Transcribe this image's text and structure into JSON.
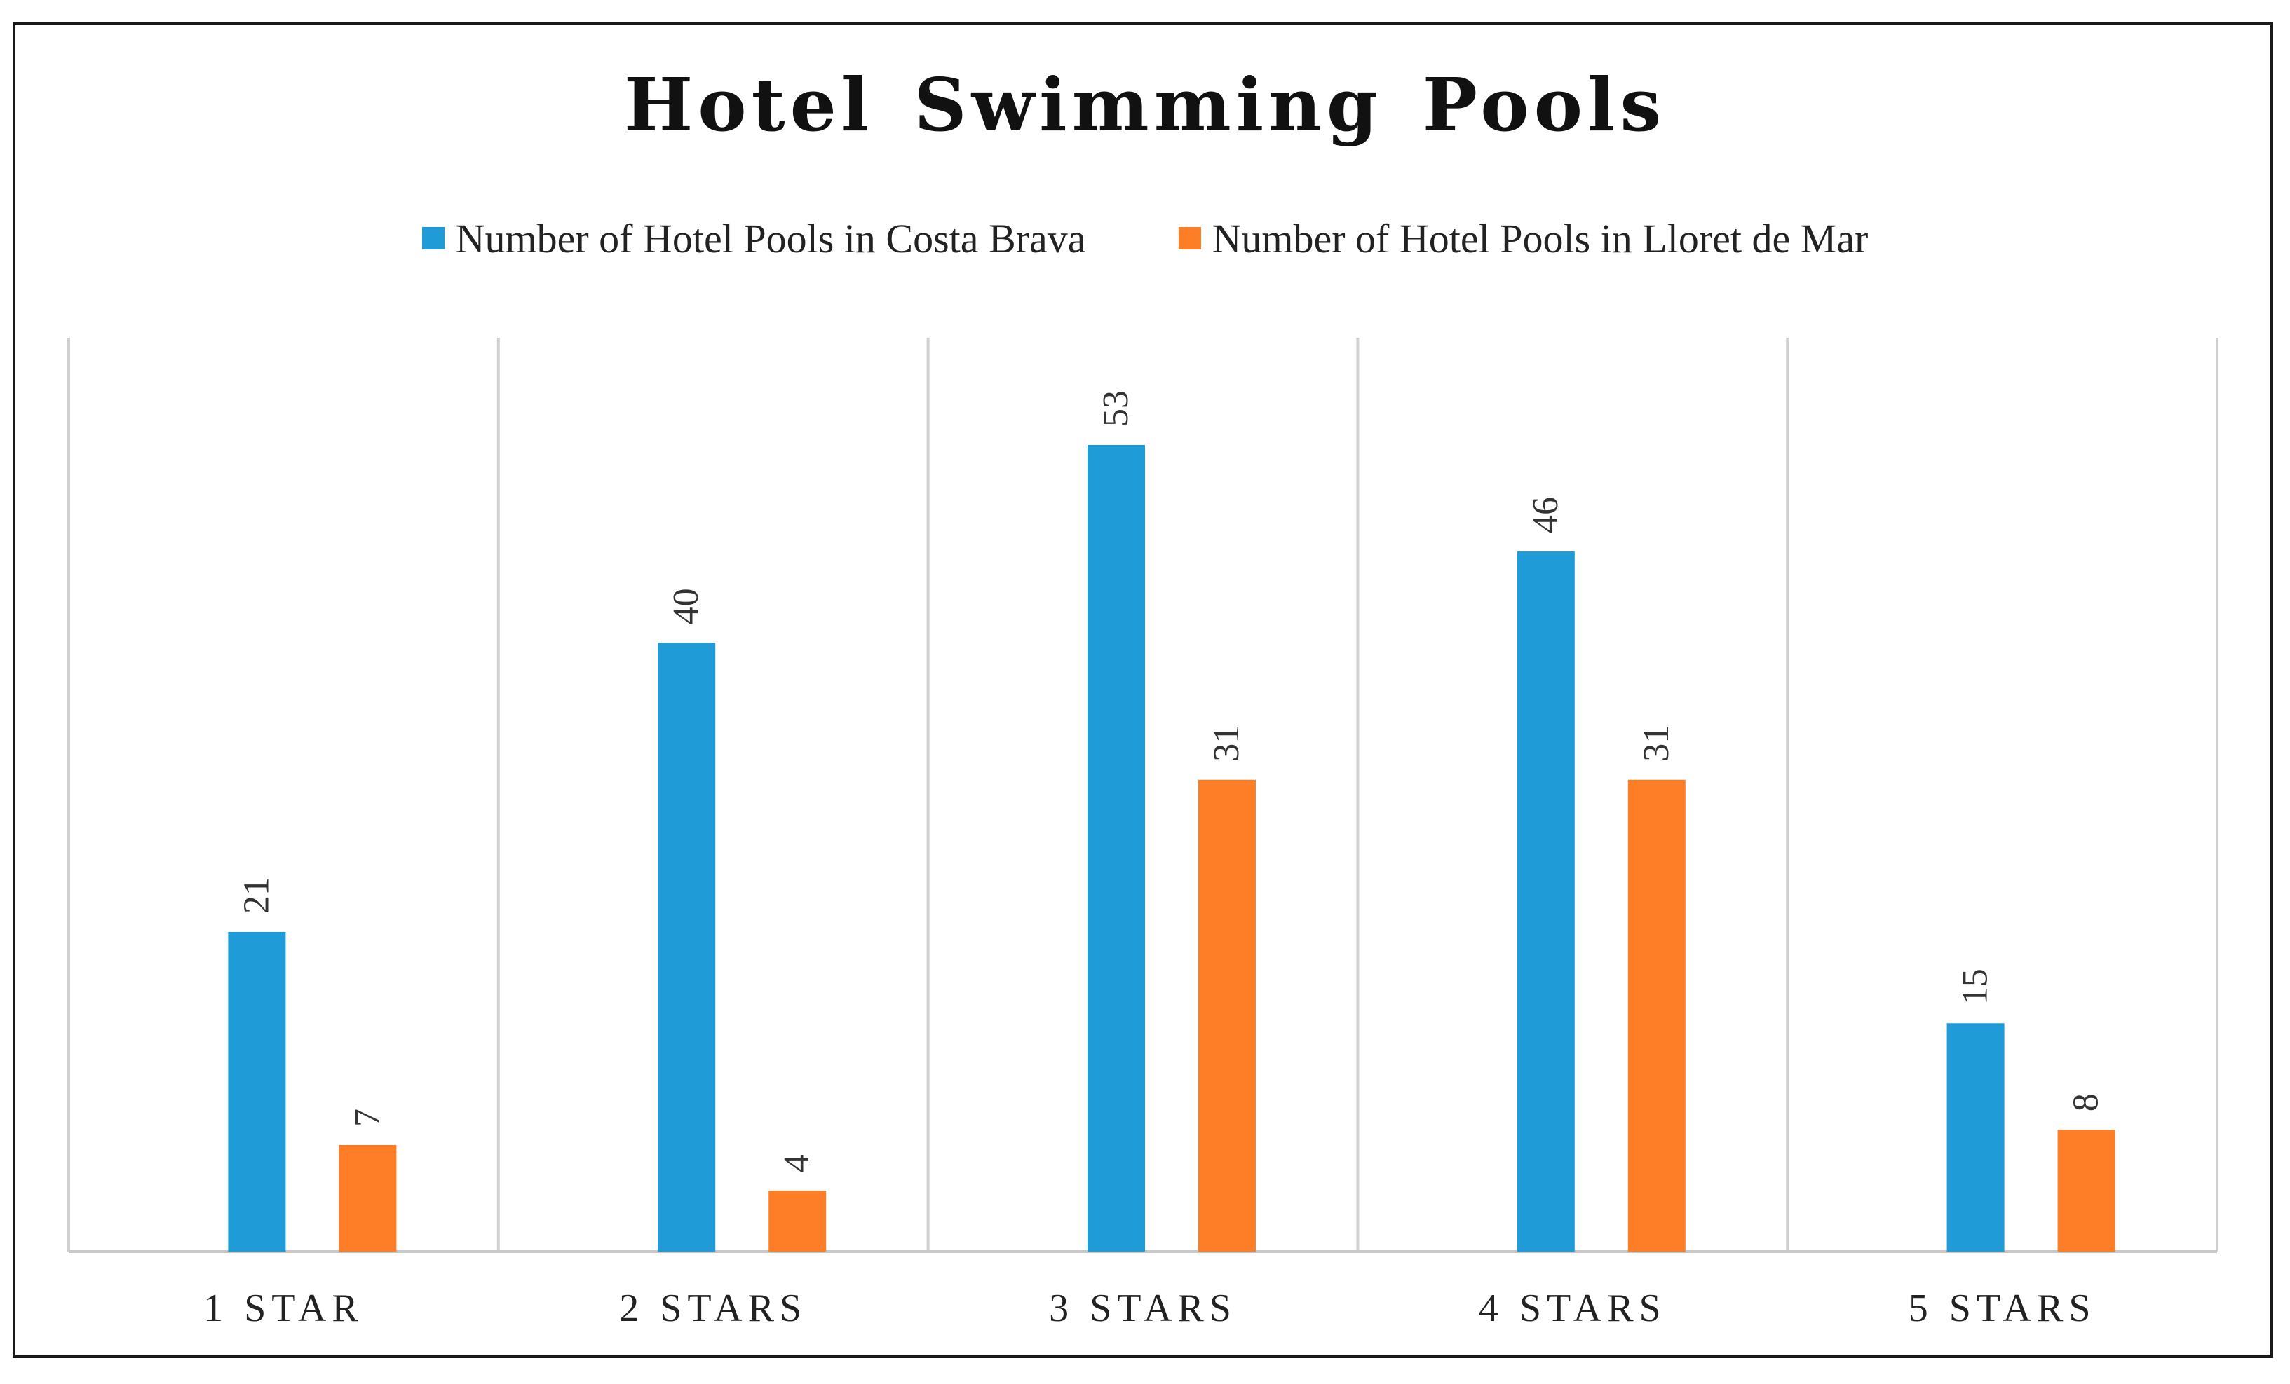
{
  "chart_data": {
    "type": "bar",
    "title": "Hotel Swimming Pools",
    "categories": [
      "1 STAR",
      "2 STARS",
      "3 STARS",
      "4 STARS",
      "5 STARS"
    ],
    "series": [
      {
        "name": "Number of Hotel Pools in Costa Brava",
        "color": "#1f9cd8",
        "values": [
          21,
          40,
          53,
          46,
          15
        ]
      },
      {
        "name": "Number of Hotel Pools in Lloret de Mar",
        "color": "#fd7e27",
        "values": [
          7,
          4,
          31,
          31,
          8
        ]
      }
    ],
    "ylim": [
      0,
      60
    ],
    "grid": false,
    "category_separators": true,
    "data_labels": true,
    "legend_position": "top"
  }
}
